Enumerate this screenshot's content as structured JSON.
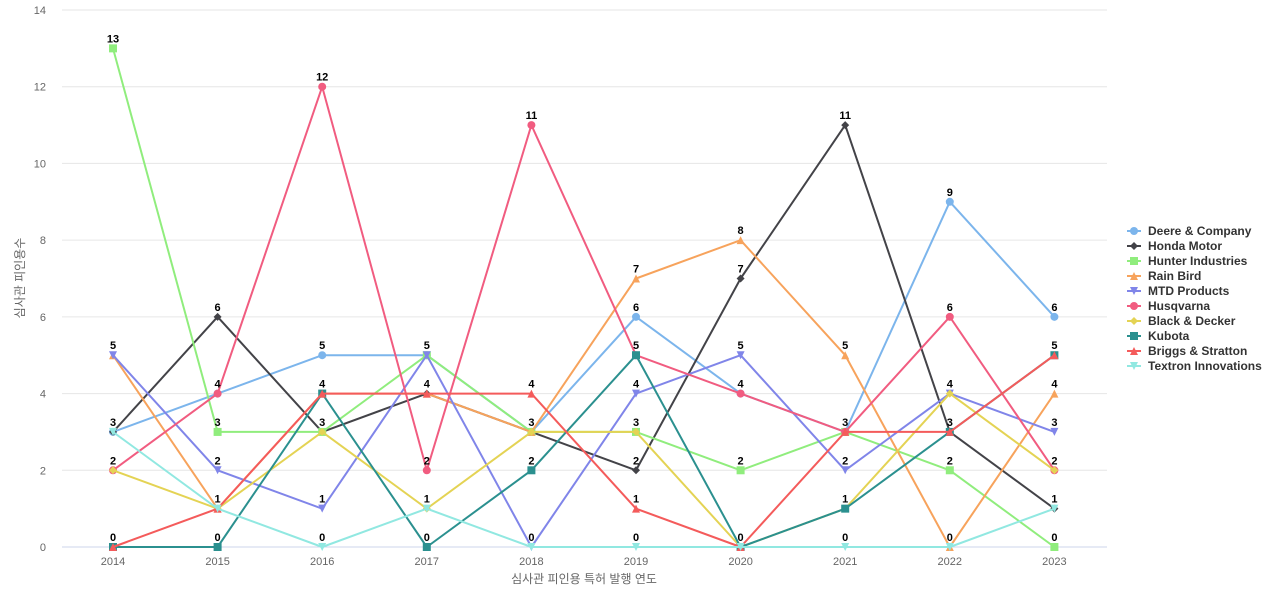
{
  "chart_data": {
    "type": "line",
    "title": "",
    "xlabel": "심사관 피인용 특허 발행 연도",
    "ylabel": "심사관 피인용수",
    "x": [
      "2014",
      "2015",
      "2016",
      "2017",
      "2018",
      "2019",
      "2020",
      "2021",
      "2022",
      "2023"
    ],
    "ylim": [
      0,
      14
    ],
    "yticks": [
      0,
      2,
      4,
      6,
      8,
      10,
      12,
      14
    ],
    "grid": true,
    "legend_position": "right",
    "series": [
      {
        "name": "Deere & Company",
        "color": "#7cb5ec",
        "marker": "circle",
        "values": [
          3,
          4,
          5,
          5,
          3,
          6,
          4,
          3,
          9,
          6
        ]
      },
      {
        "name": "Honda Motor",
        "color": "#434348",
        "marker": "diamond",
        "values": [
          3,
          6,
          3,
          4,
          3,
          2,
          7,
          11,
          3,
          1
        ]
      },
      {
        "name": "Hunter Industries",
        "color": "#90ed7d",
        "marker": "square",
        "values": [
          13,
          3,
          3,
          5,
          3,
          3,
          2,
          3,
          2,
          0
        ]
      },
      {
        "name": "Rain Bird",
        "color": "#f7a35c",
        "marker": "triangle",
        "values": [
          5,
          1,
          4,
          4,
          3,
          7,
          8,
          5,
          0,
          4
        ]
      },
      {
        "name": "MTD Products",
        "color": "#8085e9",
        "marker": "triangle-down",
        "values": [
          5,
          2,
          1,
          5,
          0,
          4,
          5,
          2,
          4,
          3
        ]
      },
      {
        "name": "Husqvarna",
        "color": "#f15c80",
        "marker": "circle",
        "values": [
          2,
          4,
          12,
          2,
          11,
          5,
          4,
          3,
          6,
          2
        ]
      },
      {
        "name": "Black & Decker",
        "color": "#e4d354",
        "marker": "diamond",
        "values": [
          2,
          1,
          3,
          1,
          3,
          3,
          0,
          1,
          4,
          2
        ]
      },
      {
        "name": "Kubota",
        "color": "#2b908f",
        "marker": "square",
        "values": [
          0,
          0,
          4,
          0,
          2,
          5,
          0,
          1,
          3,
          5
        ]
      },
      {
        "name": "Briggs & Stratton",
        "color": "#f45b5b",
        "marker": "triangle",
        "values": [
          0,
          1,
          4,
          4,
          4,
          1,
          0,
          3,
          3,
          5
        ]
      },
      {
        "name": "Textron Innovations",
        "color": "#91e8e1",
        "marker": "triangle-down",
        "values": [
          3,
          1,
          0,
          1,
          0,
          0,
          0,
          0,
          0,
          1
        ]
      }
    ],
    "data_labels": [
      {
        "x": "2014",
        "series": "Hunter Industries",
        "text": "13"
      },
      {
        "x": "2014",
        "series": "MTD Products",
        "text": "5"
      },
      {
        "x": "2014",
        "series": "Deere & Company",
        "text": "3"
      },
      {
        "x": "2014",
        "series": "Husqvarna",
        "text": "2"
      },
      {
        "x": "2014",
        "series": "Kubota",
        "text": "0"
      },
      {
        "x": "2015",
        "series": "Honda Motor",
        "text": "6"
      },
      {
        "x": "2015",
        "series": "Husqvarna",
        "text": "4"
      },
      {
        "x": "2015",
        "series": "Hunter Industries",
        "text": "3"
      },
      {
        "x": "2015",
        "series": "MTD Products",
        "text": "2"
      },
      {
        "x": "2015",
        "series": "Briggs & Stratton",
        "text": "1"
      },
      {
        "x": "2015",
        "series": "Kubota",
        "text": "0"
      },
      {
        "x": "2016",
        "series": "Husqvarna",
        "text": "12"
      },
      {
        "x": "2016",
        "series": "Deere & Company",
        "text": "5"
      },
      {
        "x": "2016",
        "series": "Kubota",
        "text": "4"
      },
      {
        "x": "2016",
        "series": "Honda Motor",
        "text": "3"
      },
      {
        "x": "2016",
        "series": "MTD Products",
        "text": "1"
      },
      {
        "x": "2016",
        "series": "Textron Innovations",
        "text": "0"
      },
      {
        "x": "2017",
        "series": "Deere & Company",
        "text": "5"
      },
      {
        "x": "2017",
        "series": "Honda Motor",
        "text": "4"
      },
      {
        "x": "2017",
        "series": "Husqvarna",
        "text": "2"
      },
      {
        "x": "2017",
        "series": "Black & Decker",
        "text": "1"
      },
      {
        "x": "2017",
        "series": "Kubota",
        "text": "0"
      },
      {
        "x": "2018",
        "series": "Husqvarna",
        "text": "11"
      },
      {
        "x": "2018",
        "series": "Briggs & Stratton",
        "text": "4"
      },
      {
        "x": "2018",
        "series": "Deere & Company",
        "text": "3"
      },
      {
        "x": "2018",
        "series": "Kubota",
        "text": "2"
      },
      {
        "x": "2018",
        "series": "MTD Products",
        "text": "0"
      },
      {
        "x": "2019",
        "series": "Rain Bird",
        "text": "7"
      },
      {
        "x": "2019",
        "series": "Deere & Company",
        "text": "6"
      },
      {
        "x": "2019",
        "series": "Husqvarna",
        "text": "5"
      },
      {
        "x": "2019",
        "series": "MTD Products",
        "text": "4"
      },
      {
        "x": "2019",
        "series": "Hunter Industries",
        "text": "3"
      },
      {
        "x": "2019",
        "series": "Honda Motor",
        "text": "2"
      },
      {
        "x": "2019",
        "series": "Briggs & Stratton",
        "text": "1"
      },
      {
        "x": "2019",
        "series": "Textron Innovations",
        "text": "0"
      },
      {
        "x": "2020",
        "series": "Rain Bird",
        "text": "8"
      },
      {
        "x": "2020",
        "series": "Honda Motor",
        "text": "7"
      },
      {
        "x": "2020",
        "series": "MTD Products",
        "text": "5"
      },
      {
        "x": "2020",
        "series": "Husqvarna",
        "text": "4"
      },
      {
        "x": "2020",
        "series": "Hunter Industries",
        "text": "2"
      },
      {
        "x": "2020",
        "series": "Kubota",
        "text": "0"
      },
      {
        "x": "2021",
        "series": "Honda Motor",
        "text": "11"
      },
      {
        "x": "2021",
        "series": "Rain Bird",
        "text": "5"
      },
      {
        "x": "2021",
        "series": "Deere & Company",
        "text": "3"
      },
      {
        "x": "2021",
        "series": "MTD Products",
        "text": "2"
      },
      {
        "x": "2021",
        "series": "Kubota",
        "text": "1"
      },
      {
        "x": "2021",
        "series": "Textron Innovations",
        "text": "0"
      },
      {
        "x": "2022",
        "series": "Deere & Company",
        "text": "9"
      },
      {
        "x": "2022",
        "series": "Husqvarna",
        "text": "6"
      },
      {
        "x": "2022",
        "series": "MTD Products",
        "text": "4"
      },
      {
        "x": "2022",
        "series": "Honda Motor",
        "text": "3"
      },
      {
        "x": "2022",
        "series": "Hunter Industries",
        "text": "2"
      },
      {
        "x": "2022",
        "series": "Rain Bird",
        "text": "0"
      },
      {
        "x": "2023",
        "series": "Deere & Company",
        "text": "6"
      },
      {
        "x": "2023",
        "series": "Kubota",
        "text": "5"
      },
      {
        "x": "2023",
        "series": "Rain Bird",
        "text": "4"
      },
      {
        "x": "2023",
        "series": "MTD Products",
        "text": "3"
      },
      {
        "x": "2023",
        "series": "Husqvarna",
        "text": "2"
      },
      {
        "x": "2023",
        "series": "Honda Motor",
        "text": "1"
      },
      {
        "x": "2023",
        "series": "Hunter Industries",
        "text": "0"
      }
    ]
  }
}
